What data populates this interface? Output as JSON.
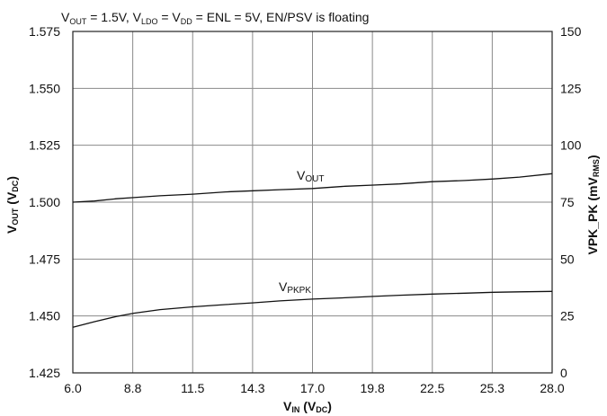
{
  "chart_data": {
    "type": "line",
    "title_parts": {
      "v1": "V",
      "v1_sub": "OUT",
      "p1": " = 1.5V, ",
      "v2": "V",
      "v2_sub": "LDO",
      "p2": " = ",
      "v3": "V",
      "v3_sub": "DD",
      "p3": " = ENL = 5V, EN/PSV is floating"
    },
    "xlabel": {
      "main": "V",
      "sub": "IN",
      "rest": " (V",
      "rest_sub": "DC",
      "close": ")"
    },
    "ylabel_left": {
      "main": "V",
      "sub": "OUT",
      "rest": " (V",
      "rest_sub": "DC",
      "close": ")"
    },
    "ylabel_right": {
      "main": "VPK_PK (mV",
      "sub": "RMS",
      "close": ")"
    },
    "x_ticks": [
      "6.0",
      "8.8",
      "11.5",
      "14.3",
      "17.0",
      "19.8",
      "22.5",
      "25.3",
      "28.0"
    ],
    "y_left_ticks": [
      "1.425",
      "1.450",
      "1.475",
      "1.500",
      "1.525",
      "1.550",
      "1.575"
    ],
    "y_right_ticks": [
      "0",
      "25",
      "50",
      "75",
      "100",
      "125",
      "150"
    ],
    "xlim": [
      6.0,
      28.0
    ],
    "ylim_left": [
      1.425,
      1.575
    ],
    "ylim_right": [
      0,
      150
    ],
    "grid": true,
    "series": [
      {
        "name": "V",
        "name_sub": "OUT",
        "axis": "left",
        "x": [
          6.0,
          7.0,
          8.0,
          8.8,
          10.0,
          11.5,
          13.0,
          14.3,
          15.5,
          17.0,
          18.5,
          19.8,
          21.0,
          22.5,
          24.0,
          25.3,
          26.5,
          28.0
        ],
        "y": [
          1.5,
          1.5005,
          1.5015,
          1.502,
          1.5028,
          1.5035,
          1.5045,
          1.505,
          1.5055,
          1.506,
          1.507,
          1.5075,
          1.508,
          1.509,
          1.5095,
          1.5102,
          1.511,
          1.5125
        ]
      },
      {
        "name": "V",
        "name_sub": "PKPK",
        "axis": "right",
        "x": [
          6.0,
          7.0,
          8.0,
          8.8,
          10.0,
          11.5,
          13.0,
          14.3,
          15.5,
          17.0,
          18.5,
          19.8,
          21.0,
          22.5,
          24.0,
          25.3,
          26.5,
          28.0
        ],
        "y": [
          20.0,
          22.5,
          24.8,
          26.2,
          27.8,
          29.0,
          30.0,
          30.8,
          31.6,
          32.4,
          33.0,
          33.6,
          34.1,
          34.6,
          35.0,
          35.4,
          35.6,
          35.8
        ]
      }
    ]
  }
}
